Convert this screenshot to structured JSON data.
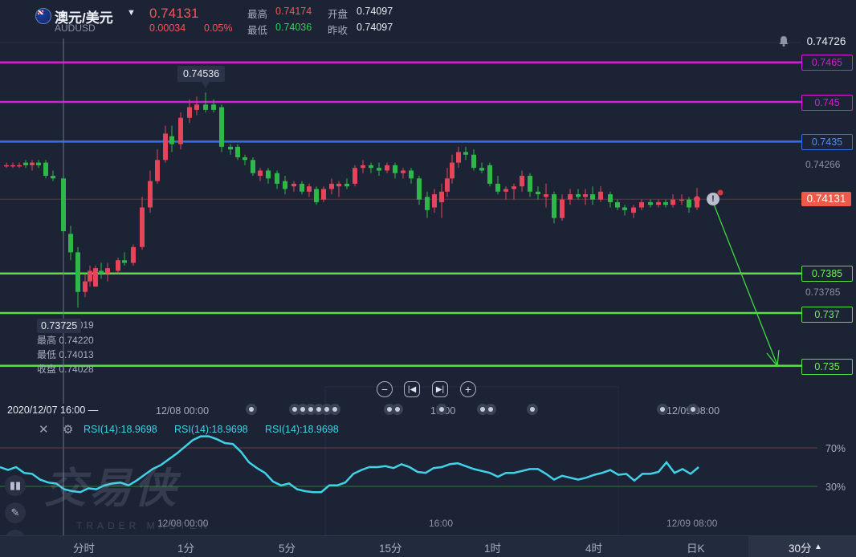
{
  "header": {
    "symbol_name": "澳元/美元",
    "symbol_code": "AUDUSD",
    "last_price": "0.74131",
    "change": "0.00034",
    "change_pct": "0.05%",
    "high_label": "最高",
    "high_value": "0.74174",
    "low_label": "最低",
    "low_value": "0.74036",
    "open_label": "开盘",
    "open_value": "0.74097",
    "prev_close_label": "昨收",
    "prev_close_value": "0.74097"
  },
  "price_axis": {
    "top_value": "0.74726",
    "mid_value": "0.74266",
    "current": "0.74131",
    "low_value": "0.73785"
  },
  "levels": [
    {
      "label": "0.7465",
      "color": "#d21ed6"
    },
    {
      "label": "0.745",
      "color": "#d21ed6"
    },
    {
      "label": "0.7435",
      "color": "#3b6fe0"
    },
    {
      "label": "0.7385",
      "color": "#58e040"
    },
    {
      "label": "0.737",
      "color": "#58e040"
    },
    {
      "label": "0.735",
      "color": "#58e040"
    }
  ],
  "tooltips": {
    "high_marker": "0.74536",
    "low_marker": "0.73725"
  },
  "ohlc": {
    "open": "开盘 0.74019",
    "high": "最高 0.74220",
    "low": "最低 0.74013",
    "close": "收盘 0.74028"
  },
  "time_axis": {
    "cursor_time": "2020/12/07 16:00 —",
    "labels": [
      "12/08 00:00",
      "16:00",
      "12/09 08:00"
    ]
  },
  "rsi": {
    "label1": "RSI(14):18.9698",
    "label2": "RSI(14):18.9698",
    "label3": "RSI(14):18.9698",
    "upper": "70%",
    "lower": "30%",
    "axis_labels": [
      "12/08 00:00",
      "16:00",
      "12/09 08:00"
    ]
  },
  "watermark": {
    "main": "交易侠",
    "sub": "TRADER MASTER"
  },
  "intervals": [
    "分时",
    "1分",
    "5分",
    "15分",
    "1时",
    "4时",
    "日K"
  ],
  "interval_selected": "30分",
  "colors": {
    "up": "#e5455a",
    "down": "#2fb84a",
    "rsi": "#3fd2e8",
    "current": "#ee5a4a"
  },
  "icons": [
    "bell-icon",
    "zoom-out-icon",
    "prev-icon",
    "next-icon",
    "zoom-in-icon",
    "close-icon",
    "settings-icon",
    "info-icon"
  ]
}
